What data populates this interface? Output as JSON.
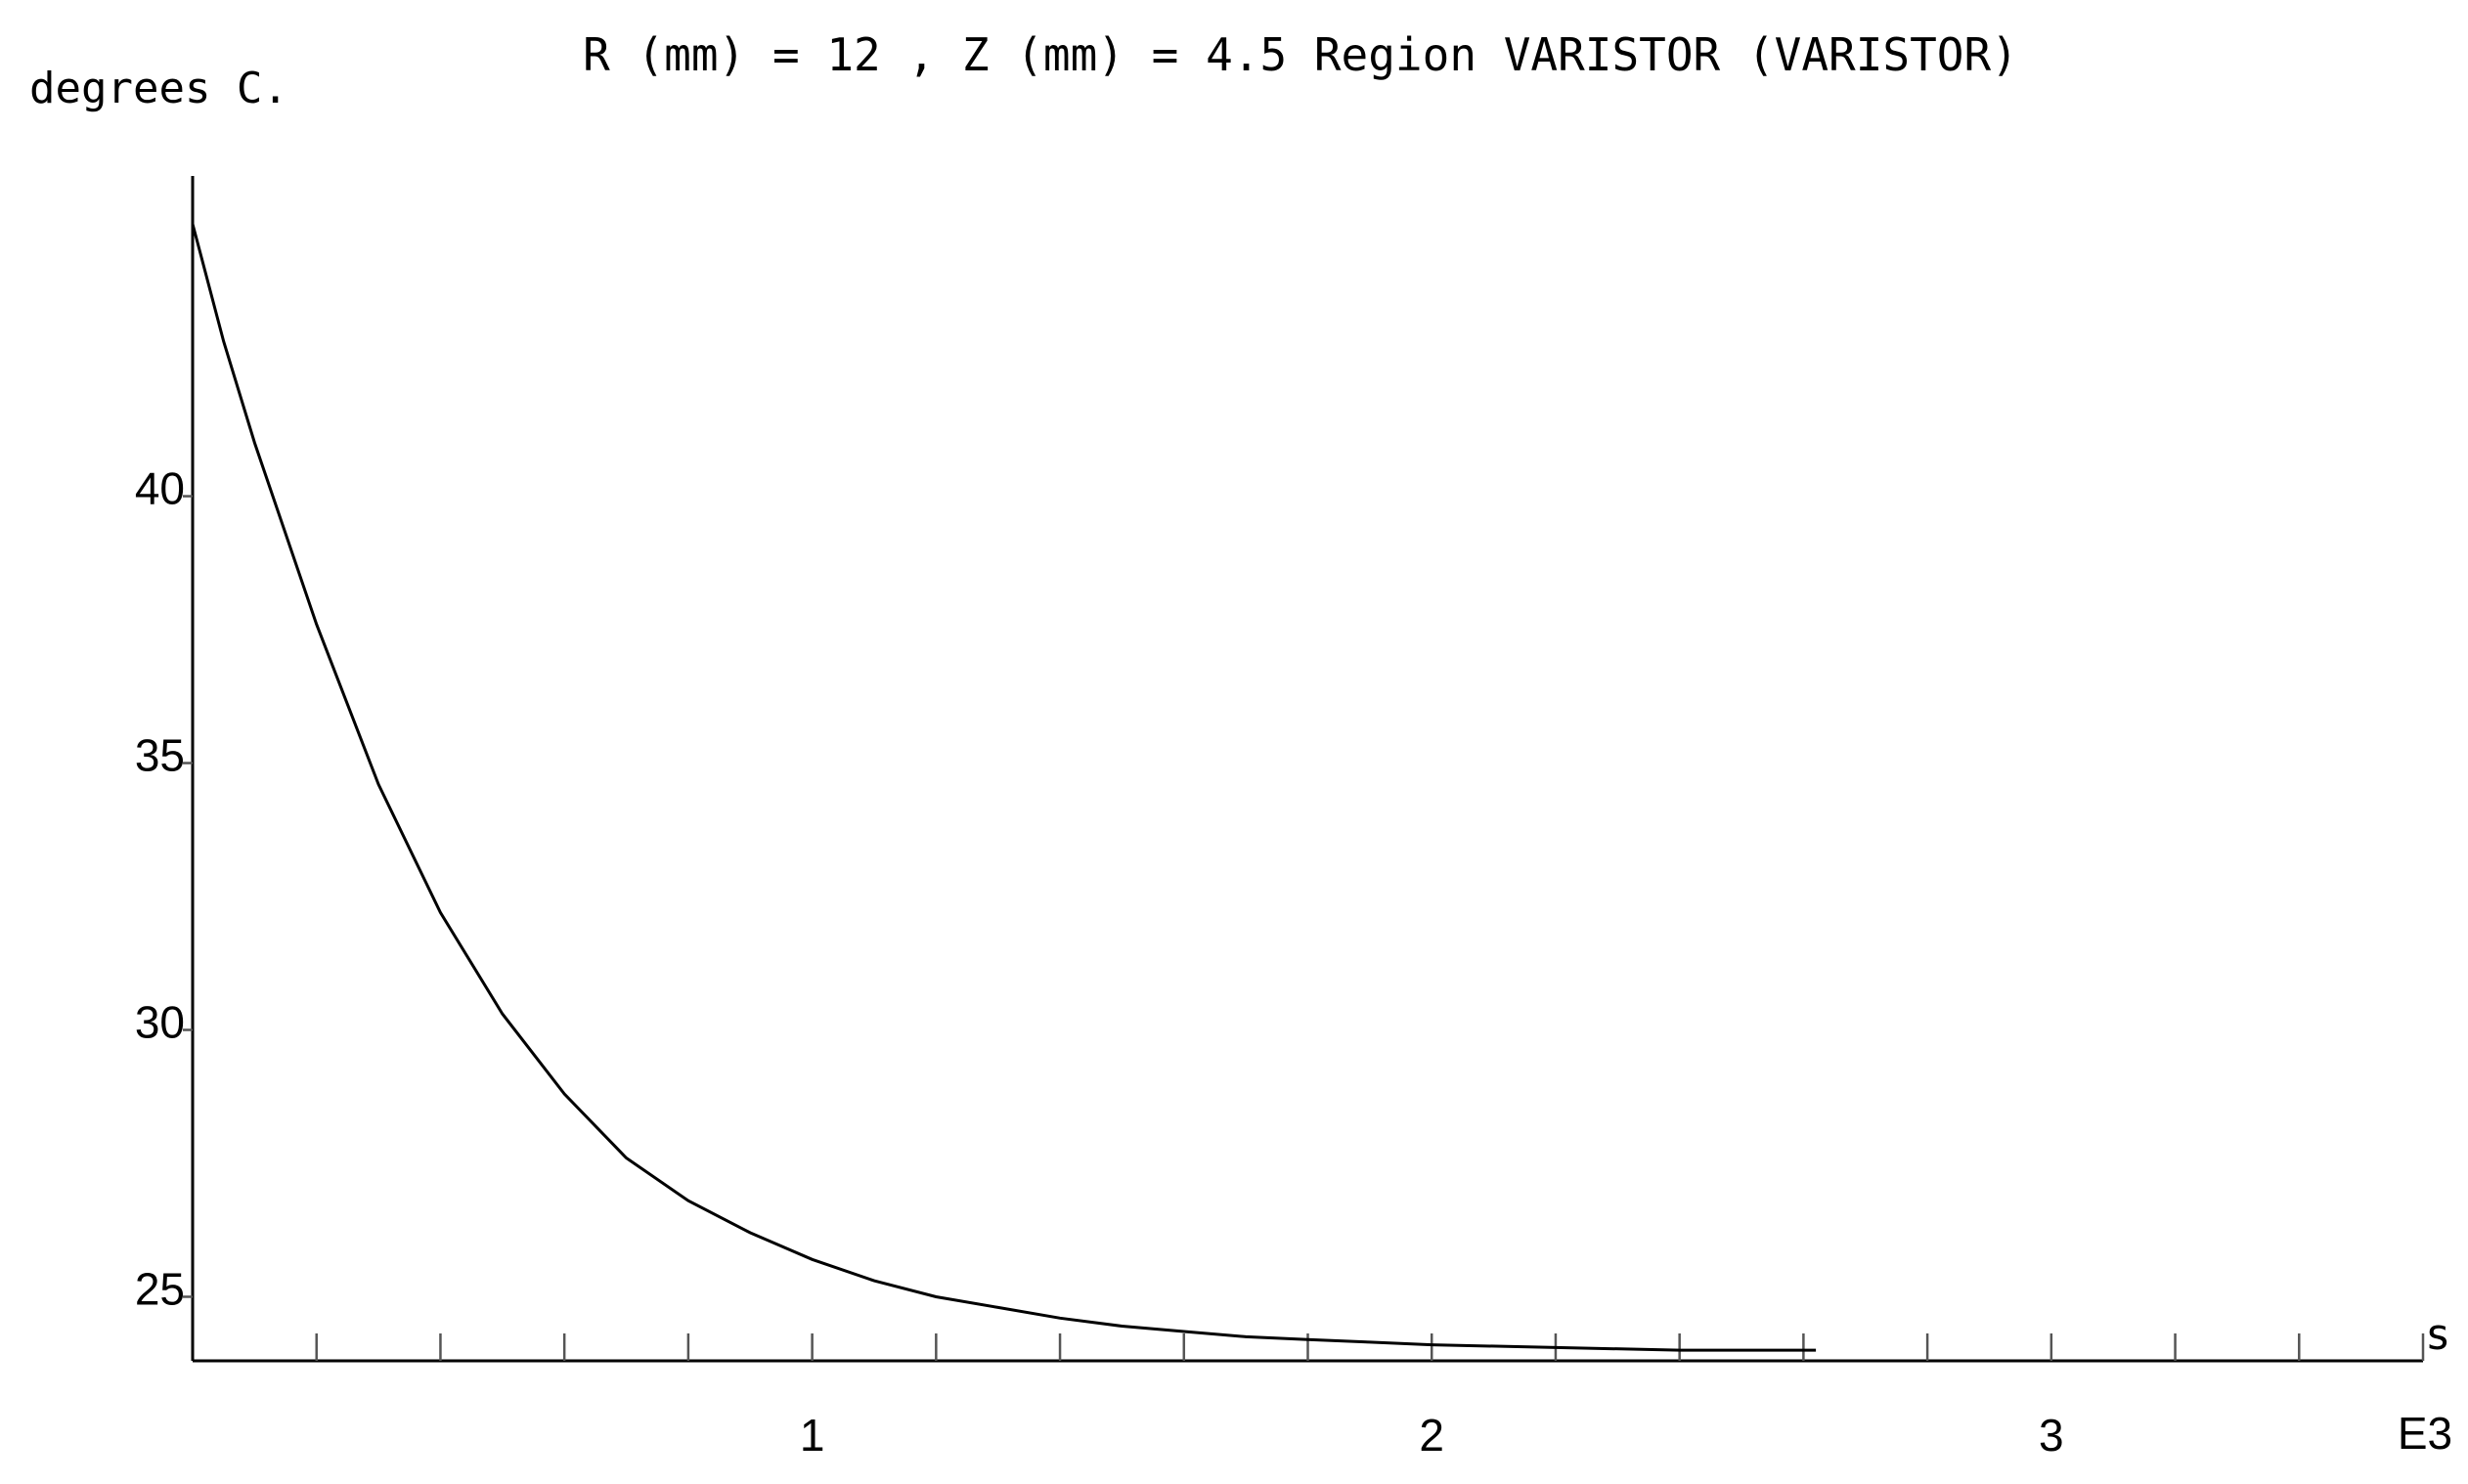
{
  "chart_data": {
    "type": "line",
    "title": "R (mm) = 12 , Z (mm) = 4.5  Region VARISTOR (VARISTOR)",
    "ylabel": "degrees C.",
    "xlabel": "s",
    "x_multiplier_label": "E3",
    "xlim": [
      0,
      3.6
    ],
    "ylim": [
      23.8,
      46
    ],
    "x_ticks": [
      1,
      2,
      3
    ],
    "x_minor_step": 0.2,
    "y_ticks": [
      25,
      30,
      35,
      40
    ],
    "series": [
      {
        "x": [
          0,
          0.05,
          0.1,
          0.2,
          0.3,
          0.4,
          0.5,
          0.6,
          0.7,
          0.8,
          0.9,
          1.0,
          1.1,
          1.2,
          1.3,
          1.4,
          1.5,
          1.6,
          1.7,
          1.8,
          1.9,
          2.0,
          2.2,
          2.4,
          2.62
        ],
        "y": [
          45.1,
          42.9,
          41.0,
          37.6,
          34.6,
          32.2,
          30.3,
          28.8,
          27.6,
          26.8,
          26.2,
          25.7,
          25.3,
          25.0,
          24.8,
          24.6,
          24.45,
          24.35,
          24.25,
          24.2,
          24.15,
          24.1,
          24.05,
          24.0,
          24.0
        ]
      }
    ]
  }
}
